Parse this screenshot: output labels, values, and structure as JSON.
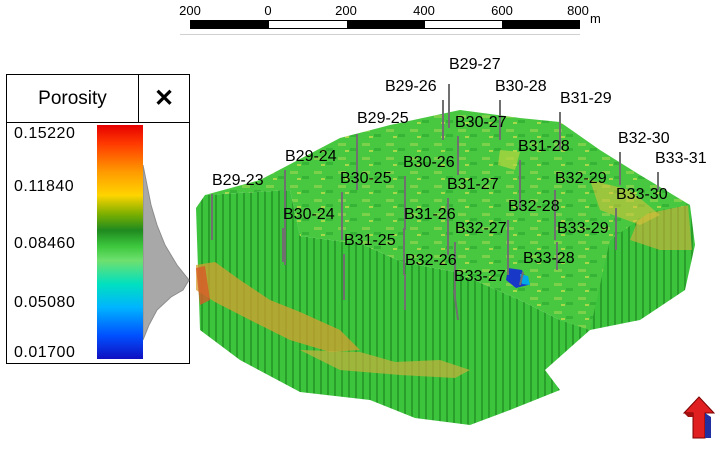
{
  "scale_bar": {
    "ticks": [
      "200",
      "0",
      "200",
      "400",
      "600",
      "800"
    ],
    "unit": "m"
  },
  "legend": {
    "title": "Porosity",
    "close_label": "✕",
    "values": [
      "0.15220",
      "0.11840",
      "0.08460",
      "0.05080",
      "0.01700"
    ]
  },
  "wells": [
    {
      "name": "B29-27"
    },
    {
      "name": "B29-26"
    },
    {
      "name": "B30-28"
    },
    {
      "name": "B31-29"
    },
    {
      "name": "B29-25"
    },
    {
      "name": "B30-27"
    },
    {
      "name": "B32-30"
    },
    {
      "name": "B31-28"
    },
    {
      "name": "B33-31"
    },
    {
      "name": "B29-24"
    },
    {
      "name": "B30-26"
    },
    {
      "name": "B32-29"
    },
    {
      "name": "B29-23"
    },
    {
      "name": "B30-25"
    },
    {
      "name": "B31-27"
    },
    {
      "name": "B33-30"
    },
    {
      "name": "B32-28"
    },
    {
      "name": "B30-24"
    },
    {
      "name": "B31-26"
    },
    {
      "name": "B33-29"
    },
    {
      "name": "B32-27"
    },
    {
      "name": "B31-25"
    },
    {
      "name": "B33-28"
    },
    {
      "name": "B32-26"
    },
    {
      "name": "B33-27"
    }
  ],
  "colors": {
    "north_arrow": "#e02020",
    "well_line": "#707070"
  },
  "icons": {
    "north_arrow": "north-arrow-icon",
    "close": "close-icon"
  }
}
